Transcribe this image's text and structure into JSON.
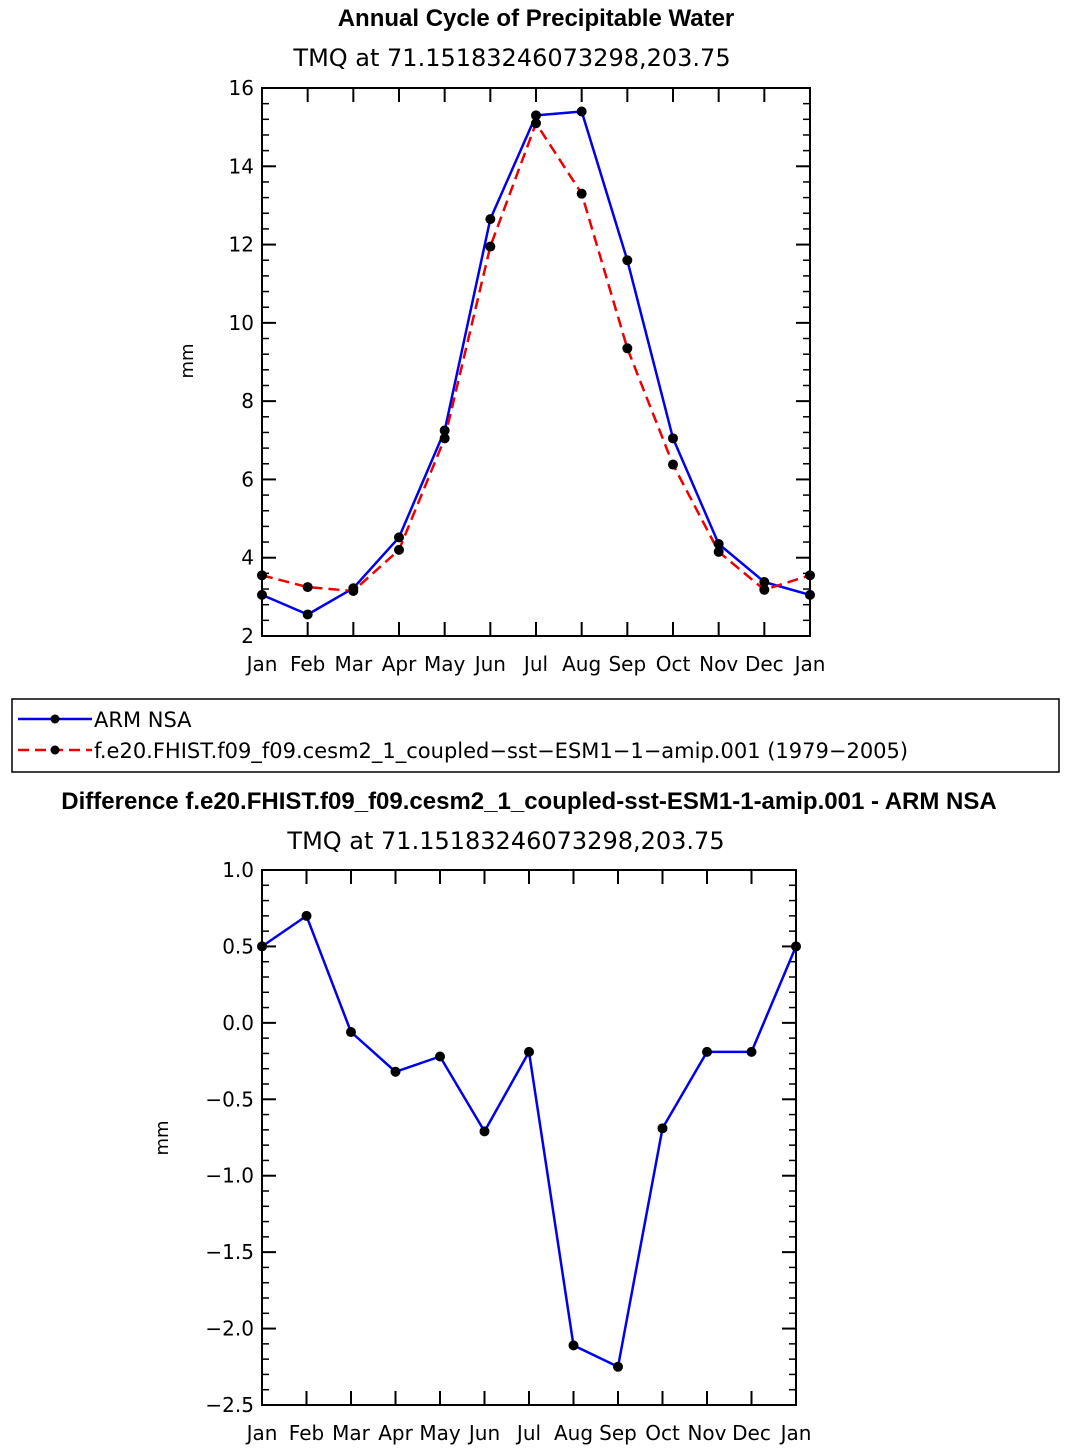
{
  "chart_data": [
    {
      "type": "line",
      "title": "Annual Cycle of Precipitable Water",
      "subtitle": "TMQ at 71.15183246073298,203.75",
      "ylabel": "mm",
      "xlabel": "",
      "categories": [
        "Jan",
        "Feb",
        "Mar",
        "Apr",
        "May",
        "Jun",
        "Jul",
        "Aug",
        "Sep",
        "Oct",
        "Nov",
        "Dec",
        "Jan"
      ],
      "ylim": [
        2,
        16
      ],
      "yticks": [
        "2",
        "4",
        "6",
        "8",
        "10",
        "12",
        "14",
        "16"
      ],
      "ytick_values": [
        2,
        4,
        6,
        8,
        10,
        12,
        14,
        16
      ],
      "series": [
        {
          "name": "ARM NSA",
          "color": "#0000ee",
          "dash": "solid",
          "values": [
            3.05,
            2.55,
            3.22,
            4.52,
            7.25,
            12.65,
            15.3,
            15.4,
            11.6,
            7.05,
            4.35,
            3.38,
            3.05
          ]
        },
        {
          "name": "f.e20.FHIST.f09_f09.cesm2_1_coupled-sst-ESM1-1-amip.001 (1979-2005)",
          "color": "#ee0000",
          "dash": "dashed",
          "values": [
            3.55,
            3.25,
            3.15,
            4.2,
            7.05,
            11.95,
            15.1,
            13.3,
            9.35,
            6.38,
            4.15,
            3.18,
            3.55
          ]
        }
      ],
      "legend": [
        {
          "label": "ARM NSA",
          "color": "#0000ee"
        },
        {
          "label": "f.e20.FHIST.f09_f09.cesm2_1_coupled−sst−ESM1−1−amip.001 (1979−2005)",
          "color": "#ee0000"
        }
      ]
    },
    {
      "type": "line",
      "title": "Difference f.e20.FHIST.f09_f09.cesm2_1_coupled-sst-ESM1-1-amip.001 - ARM NSA",
      "subtitle": "TMQ at 71.15183246073298,203.75",
      "ylabel": "mm",
      "xlabel": "",
      "categories": [
        "Jan",
        "Feb",
        "Mar",
        "Apr",
        "May",
        "Jun",
        "Jul",
        "Aug",
        "Sep",
        "Oct",
        "Nov",
        "Dec",
        "Jan"
      ],
      "ylim": [
        -2.5,
        1.0
      ],
      "yticks": [
        "1.0",
        "0.5",
        "0.0",
        "−0.5",
        "−1.0",
        "−1.5",
        "−2.0",
        "−2.5"
      ],
      "ytick_values": [
        1.0,
        0.5,
        0.0,
        -0.5,
        -1.0,
        -1.5,
        -2.0,
        -2.5
      ],
      "series": [
        {
          "name": "Difference",
          "color": "#0000ee",
          "dash": "solid",
          "values": [
            0.5,
            0.7,
            -0.06,
            -0.32,
            -0.22,
            -0.71,
            -0.19,
            -2.11,
            -2.25,
            -0.69,
            -0.19,
            -0.19,
            0.5
          ]
        }
      ]
    }
  ]
}
